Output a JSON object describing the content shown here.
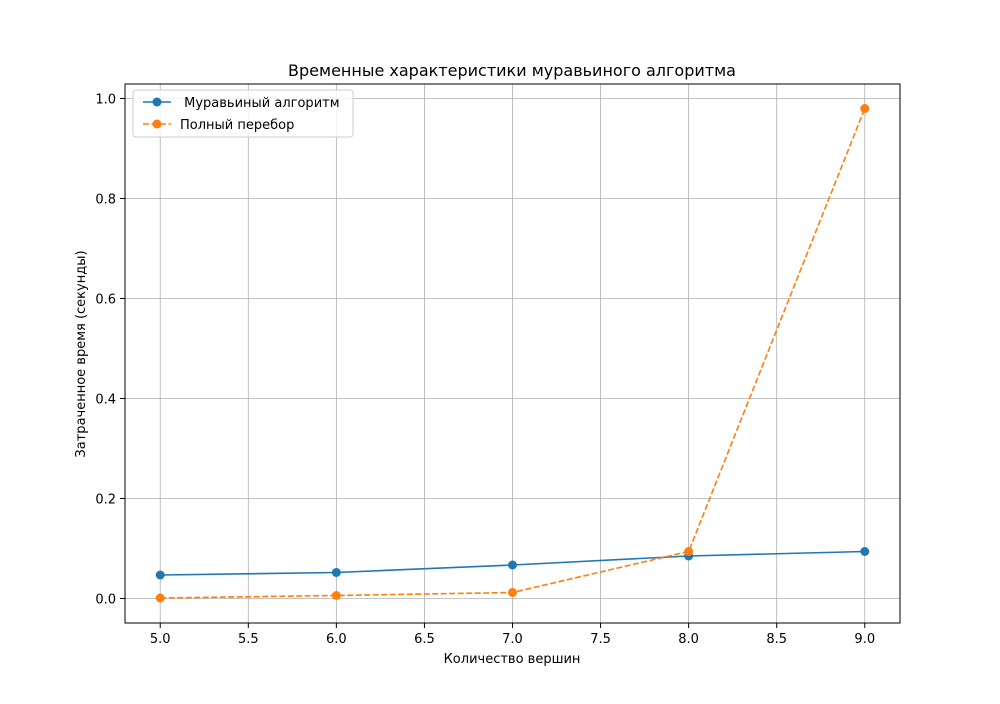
{
  "chart_data": {
    "type": "line",
    "title": "Временные характеристики муравьиного алгоритма",
    "xlabel": "Количество вершин",
    "ylabel": "Затраченное время (секунды)",
    "xlim": [
      4.8,
      9.2
    ],
    "ylim": [
      -0.049,
      1.029
    ],
    "xticks": [
      5.0,
      5.5,
      6.0,
      6.5,
      7.0,
      7.5,
      8.0,
      8.5,
      9.0
    ],
    "xtick_labels": [
      "5.0",
      "5.5",
      "6.0",
      "6.5",
      "7.0",
      "7.5",
      "8.0",
      "8.5",
      "9.0"
    ],
    "yticks": [
      0.0,
      0.2,
      0.4,
      0.6,
      0.8,
      1.0
    ],
    "ytick_labels": [
      "0.0",
      "0.2",
      "0.4",
      "0.6",
      "0.8",
      "1.0"
    ],
    "grid": true,
    "legend_position": "top-left",
    "x": [
      5,
      6,
      7,
      8,
      9
    ],
    "series": [
      {
        "name": " Муравьиный алгоритм",
        "values": [
          0.047,
          0.052,
          0.067,
          0.085,
          0.094
        ],
        "color": "#1f77b4",
        "line_style": "solid",
        "marker": "circle"
      },
      {
        "name": "Полный перебор",
        "values": [
          0.001,
          0.006,
          0.012,
          0.094,
          0.98
        ],
        "color": "#ff7f0e",
        "line_style": "dashed",
        "marker": "circle"
      }
    ]
  }
}
